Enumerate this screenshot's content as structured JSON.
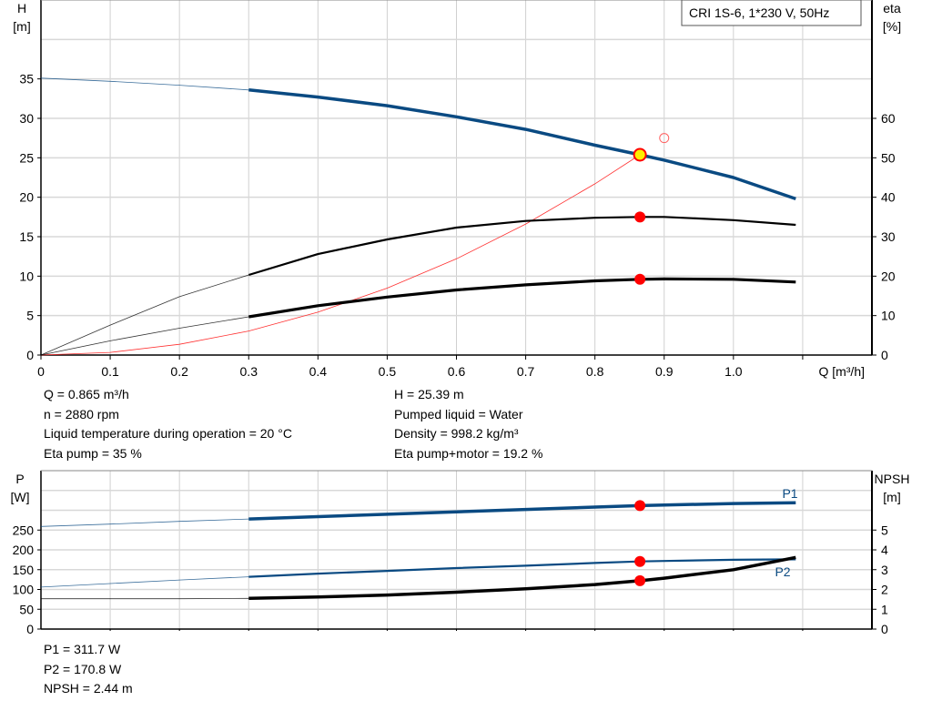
{
  "chart_data": [
    {
      "type": "line",
      "title": "CRI 1S-6, 1*230 V, 50Hz",
      "xlabel": "Q [m³/h]",
      "ylabel": "H\n[m]",
      "ylabel_top": "H",
      "ylabel_unit": "[m]",
      "y2label_top": "eta",
      "y2label_unit": "[%]",
      "xlim": [
        0,
        1.2
      ],
      "ylim": [
        0,
        45
      ],
      "y2lim": [
        0,
        90
      ],
      "xticks": [
        "0",
        "0.1",
        "0.2",
        "0.3",
        "0.4",
        "0.5",
        "0.6",
        "0.7",
        "0.8",
        "0.9",
        "1.0"
      ],
      "yticks": [
        "0",
        "5",
        "10",
        "15",
        "20",
        "25",
        "30",
        "35"
      ],
      "y2ticks": [
        "0",
        "10",
        "20",
        "30",
        "40",
        "50",
        "60"
      ],
      "grid": true,
      "x": [
        0,
        0.1,
        0.2,
        0.3,
        0.4,
        0.5,
        0.6,
        0.7,
        0.8,
        0.865,
        0.9,
        1.0,
        1.09
      ],
      "series": [
        {
          "axis": "H",
          "color": "#0a4a82",
          "values": [
            35.1,
            34.7,
            34.2,
            33.6,
            32.7,
            31.6,
            30.2,
            28.6,
            26.6,
            25.39,
            24.7,
            22.5,
            19.8
          ]
        },
        {
          "axis": "eta",
          "color": "#000000",
          "values": [
            0,
            7.6,
            14.8,
            20.3,
            25.6,
            29.3,
            32.3,
            34,
            34.8,
            35,
            35,
            34.2,
            33
          ]
        },
        {
          "axis": "eta",
          "color": "#000000",
          "values": [
            0,
            3.6,
            6.8,
            9.7,
            12.5,
            14.7,
            16.5,
            17.8,
            18.8,
            19.2,
            19.3,
            19.2,
            18.5
          ]
        }
      ],
      "system_curve": {
        "color": "#ff3030",
        "x": [
          0,
          0.1,
          0.2,
          0.3,
          0.4,
          0.5,
          0.6,
          0.7,
          0.8,
          0.865
        ],
        "values": [
          0,
          0.34,
          1.36,
          3.05,
          5.43,
          8.48,
          12.2,
          16.6,
          21.7,
          25.39
        ]
      },
      "duty_point": {
        "Q": 0.865,
        "H": 25.39,
        "eta_pump": 35,
        "eta_total": 19.2
      },
      "reference_point": {
        "Q": 0.9,
        "H": 27.5
      },
      "operating_range_start": 0.3
    },
    {
      "type": "line",
      "ylabel_top": "P",
      "ylabel_unit": "[W]",
      "y2label_top": "NPSH",
      "y2label_unit": "[m]",
      "xlim": [
        0,
        1.2
      ],
      "ylim": [
        0,
        400
      ],
      "y2lim": [
        0,
        8
      ],
      "yticks": [
        "0",
        "50",
        "100",
        "150",
        "200",
        "250"
      ],
      "y2ticks": [
        "0",
        "1",
        "2",
        "3",
        "4",
        "5"
      ],
      "grid": true,
      "x": [
        0,
        0.1,
        0.2,
        0.3,
        0.4,
        0.5,
        0.6,
        0.7,
        0.8,
        0.865,
        0.9,
        1.0,
        1.09
      ],
      "series": [
        {
          "name": "P1",
          "axis": "P",
          "color": "#0a4a82",
          "values": [
            259,
            265,
            272,
            278,
            284,
            290,
            296,
            302,
            308,
            311.7,
            313,
            317,
            319
          ]
        },
        {
          "name": "P2",
          "axis": "P",
          "color": "#0a4a82",
          "values": [
            106,
            115,
            124,
            132,
            140,
            147,
            154,
            160,
            167,
            170.8,
            172,
            175,
            176
          ]
        },
        {
          "axis": "NPSH",
          "color": "#000000",
          "values": [
            1.53,
            1.53,
            1.53,
            1.55,
            1.62,
            1.72,
            1.86,
            2.03,
            2.25,
            2.44,
            2.57,
            3.0,
            3.62
          ]
        }
      ],
      "duty_point": {
        "Q": 0.865,
        "P1": 311.7,
        "P2": 170.8,
        "NPSH": 2.44
      }
    }
  ],
  "info_top": {
    "left": [
      "Q = 0.865 m³/h",
      "n = 2880 rpm",
      "Liquid temperature during operation = 20 °C",
      "Eta pump = 35 %"
    ],
    "right": [
      "H = 25.39 m",
      "Pumped liquid = Water",
      "Density = 998.2 kg/m³",
      "Eta pump+motor = 19.2 %"
    ]
  },
  "info_bottom": [
    "P1 = 311.7 W",
    "P2 = 170.8 W",
    "NPSH = 2.44 m"
  ]
}
